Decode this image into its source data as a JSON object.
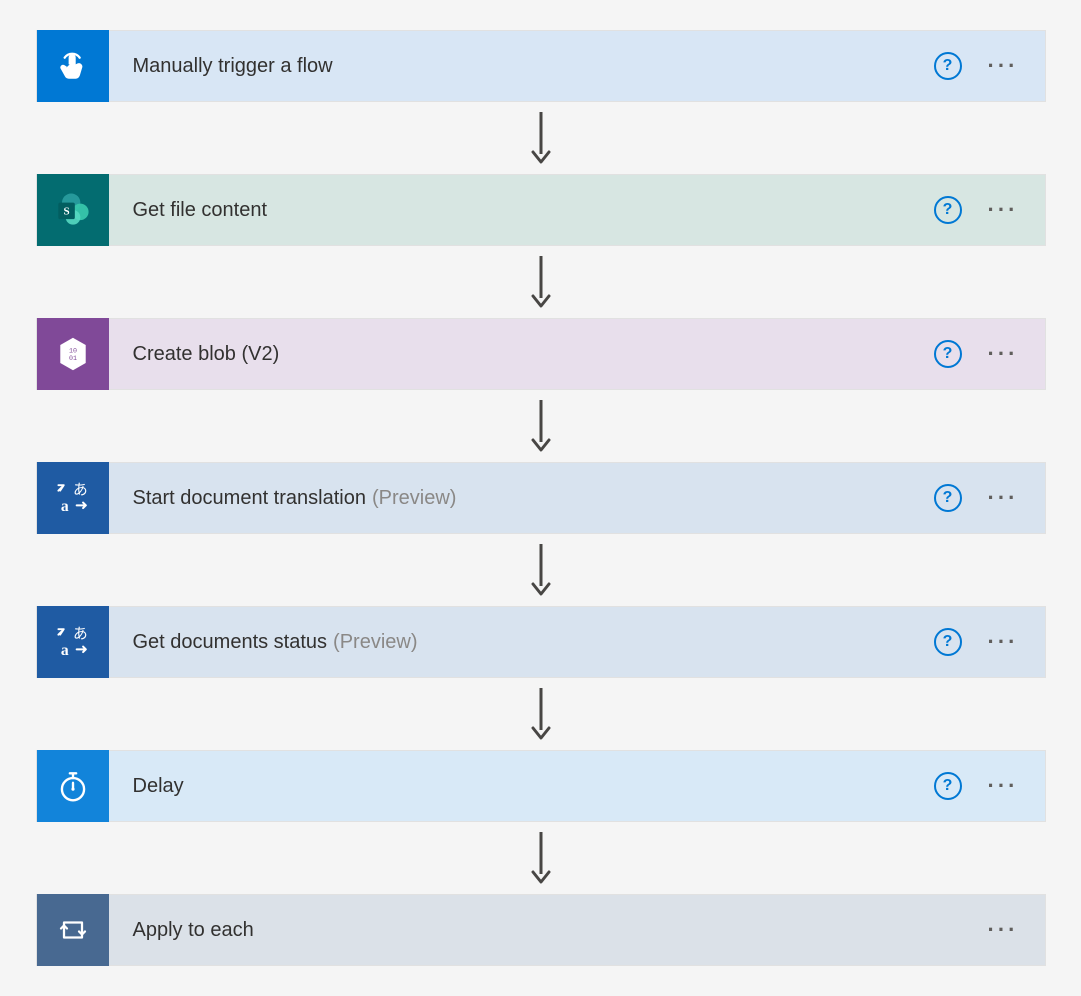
{
  "flow": {
    "background": "#f5f5f5",
    "arrow_color": "#484644",
    "help_color": "#0078d4",
    "more_glyph": "···",
    "steps": [
      {
        "id": "trigger",
        "title": "Manually trigger a flow",
        "suffix": "",
        "icon_bg": "#0078d4",
        "body_bg": "#d8e6f5",
        "show_help": true,
        "icon": "tap"
      },
      {
        "id": "get-file",
        "title": "Get file content",
        "suffix": "",
        "icon_bg": "#036c70",
        "body_bg": "#d7e6e2",
        "show_help": true,
        "icon": "sharepoint"
      },
      {
        "id": "create-blob",
        "title": "Create blob (V2)",
        "suffix": "",
        "icon_bg": "#804998",
        "body_bg": "#e8dfec",
        "show_help": true,
        "icon": "blob"
      },
      {
        "id": "start-translate",
        "title": "Start document translation",
        "suffix": "(Preview)",
        "icon_bg": "#1f5ba3",
        "body_bg": "#d8e3ef",
        "show_help": true,
        "icon": "translate"
      },
      {
        "id": "get-status",
        "title": "Get documents status",
        "suffix": "(Preview)",
        "icon_bg": "#1f5ba3",
        "body_bg": "#d8e3ef",
        "show_help": true,
        "icon": "translate"
      },
      {
        "id": "delay",
        "title": "Delay",
        "suffix": "",
        "icon_bg": "#1284da",
        "body_bg": "#d8e9f7",
        "show_help": true,
        "icon": "stopwatch"
      },
      {
        "id": "apply-each",
        "title": "Apply to each",
        "suffix": "",
        "icon_bg": "#486991",
        "body_bg": "#dbe1e8",
        "show_help": false,
        "icon": "loop"
      }
    ]
  }
}
